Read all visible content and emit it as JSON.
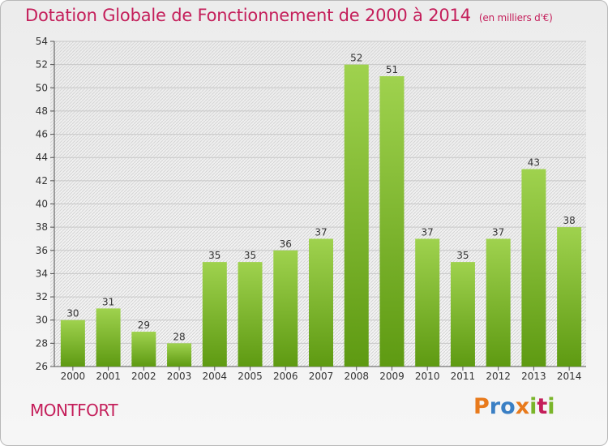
{
  "title": "Dotation Globale de Fonctionnement de 2000 à 2014",
  "unit_note": "(en milliers d'€)",
  "commune": "MONTFORT",
  "logo": [
    "P",
    "r",
    "o",
    "x",
    "i",
    "t",
    "i"
  ],
  "colors": {
    "title": "#c41e5a",
    "bar_top": "#9fd24e",
    "bar_bottom": "#5e9a12",
    "logo": [
      "#e87a1c",
      "#3a7fc4",
      "#3a7fc4",
      "#e87a1c",
      "#7ab52a",
      "#c41e5a",
      "#7ab52a"
    ]
  },
  "chart_data": {
    "type": "bar",
    "categories": [
      "2000",
      "2001",
      "2002",
      "2003",
      "2004",
      "2005",
      "2006",
      "2007",
      "2008",
      "2009",
      "2010",
      "2011",
      "2012",
      "2013",
      "2014"
    ],
    "values": [
      30,
      31,
      29,
      28,
      35,
      35,
      36,
      37,
      52,
      51,
      37,
      35,
      37,
      43,
      38
    ],
    "ylim": [
      26,
      54
    ],
    "yticks": [
      26,
      28,
      30,
      32,
      34,
      36,
      38,
      40,
      42,
      44,
      46,
      48,
      50,
      52,
      54
    ],
    "grid": true
  }
}
